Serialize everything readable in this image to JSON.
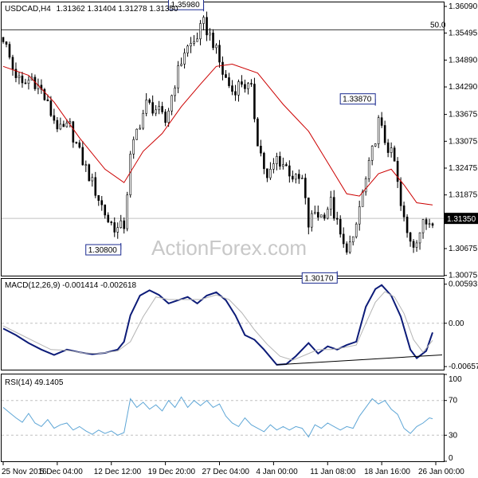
{
  "chart_data": [
    {
      "type": "candlestick",
      "panel": "price",
      "symbol_header": "USDCAD,H4",
      "ohlc_header": "1.31362 1.31404 1.31278 1.31350",
      "watermark": "ActionForex.com",
      "current_price_label": "1.31350",
      "ylim": [
        1.3007,
        1.3618
      ],
      "y_ticks": [
        "1.36090",
        "1.35495",
        "1.34890",
        "1.34290",
        "1.33675",
        "1.33075",
        "1.32475",
        "1.31875",
        "1.30675",
        "1.30075"
      ],
      "y_tick_values": [
        1.3609,
        1.35495,
        1.3489,
        1.3429,
        1.33675,
        1.33075,
        1.32475,
        1.31875,
        1.30675,
        1.30075
      ],
      "level_line": {
        "label": "50.0",
        "value": 1.35565
      },
      "current_price_value": 1.3135,
      "annotations": [
        {
          "text": "1.35980",
          "value": 1.3598,
          "index": 63
        },
        {
          "text": "1.30800",
          "value": 1.308,
          "index": 37
        },
        {
          "text": "1.30170",
          "value": 1.3017,
          "index": 105
        },
        {
          "text": "1.33870",
          "value": 1.3387,
          "index": 117
        }
      ],
      "close_path": [
        [
          0,
          1.354
        ],
        [
          3,
          1.347
        ],
        [
          6,
          1.343
        ],
        [
          9,
          1.345
        ],
        [
          12,
          1.342
        ],
        [
          15,
          1.337
        ],
        [
          18,
          1.333
        ],
        [
          21,
          1.334
        ],
        [
          24,
          1.328
        ],
        [
          27,
          1.323
        ],
        [
          30,
          1.318
        ],
        [
          33,
          1.313
        ],
        [
          36,
          1.311
        ],
        [
          38,
          1.312
        ],
        [
          40,
          1.327
        ],
        [
          42,
          1.333
        ],
        [
          45,
          1.339
        ],
        [
          48,
          1.338
        ],
        [
          51,
          1.335
        ],
        [
          54,
          1.344
        ],
        [
          57,
          1.351
        ],
        [
          60,
          1.353
        ],
        [
          63,
          1.357
        ],
        [
          66,
          1.353
        ],
        [
          69,
          1.346
        ],
        [
          72,
          1.342
        ],
        [
          75,
          1.344
        ],
        [
          78,
          1.342
        ],
        [
          80,
          1.331
        ],
        [
          83,
          1.322
        ],
        [
          86,
          1.327
        ],
        [
          89,
          1.325
        ],
        [
          92,
          1.322
        ],
        [
          94,
          1.322
        ],
        [
          96,
          1.312
        ],
        [
          98,
          1.315
        ],
        [
          100,
          1.314
        ],
        [
          103,
          1.317
        ],
        [
          105,
          1.312
        ],
        [
          107,
          1.307
        ],
        [
          110,
          1.308
        ],
        [
          112,
          1.316
        ],
        [
          115,
          1.325
        ],
        [
          118,
          1.335
        ],
        [
          120,
          1.331
        ],
        [
          123,
          1.326
        ],
        [
          125,
          1.316
        ],
        [
          127,
          1.31
        ],
        [
          129,
          1.308
        ],
        [
          132,
          1.312
        ],
        [
          135,
          1.3135
        ]
      ],
      "ma_line": {
        "name": "",
        "path": [
          [
            0,
            1.3475
          ],
          [
            8,
            1.3455
          ],
          [
            16,
            1.3395
          ],
          [
            24,
            1.3315
          ],
          [
            32,
            1.3245
          ],
          [
            38,
            1.3215
          ],
          [
            44,
            1.3285
          ],
          [
            50,
            1.3325
          ],
          [
            56,
            1.3385
          ],
          [
            62,
            1.3435
          ],
          [
            67,
            1.3475
          ],
          [
            72,
            1.348
          ],
          [
            80,
            1.346
          ],
          [
            88,
            1.339
          ],
          [
            96,
            1.333
          ],
          [
            102,
            1.326
          ],
          [
            108,
            1.319
          ],
          [
            112,
            1.3185
          ],
          [
            118,
            1.3235
          ],
          [
            122,
            1.3245
          ],
          [
            126,
            1.321
          ],
          [
            130,
            1.317
          ],
          [
            135,
            1.3165
          ]
        ]
      }
    },
    {
      "type": "line",
      "panel": "macd",
      "indicator_header": "MACD(12,26,9) -0.001414 -0.002618",
      "ylim": [
        -0.0068,
        0.0065
      ],
      "y_ticks": [
        "0.00593",
        "0.00",
        "-0.006575"
      ],
      "y_tick_values": [
        0.00593,
        0.0,
        -0.006575
      ],
      "series": [
        {
          "name": "",
          "role": "macd",
          "values": [
            [
              0,
              -0.0008
            ],
            [
              4,
              -0.0018
            ],
            [
              8,
              -0.003
            ],
            [
              12,
              -0.004
            ],
            [
              16,
              -0.0048
            ],
            [
              20,
              -0.004
            ],
            [
              24,
              -0.0044
            ],
            [
              28,
              -0.0047
            ],
            [
              32,
              -0.0045
            ],
            [
              36,
              -0.004
            ],
            [
              38,
              -0.0028
            ],
            [
              40,
              0.0012
            ],
            [
              43,
              0.0042
            ],
            [
              46,
              0.005
            ],
            [
              49,
              0.0043
            ],
            [
              52,
              0.003
            ],
            [
              55,
              0.0035
            ],
            [
              58,
              0.004
            ],
            [
              61,
              0.003
            ],
            [
              64,
              0.0042
            ],
            [
              67,
              0.0047
            ],
            [
              70,
              0.0035
            ],
            [
              73,
              0.0012
            ],
            [
              76,
              -0.0018
            ],
            [
              79,
              -0.0025
            ],
            [
              82,
              -0.004
            ],
            [
              86,
              -0.0063
            ],
            [
              89,
              -0.0062
            ],
            [
              92,
              -0.005
            ],
            [
              96,
              -0.003
            ],
            [
              99,
              -0.0046
            ],
            [
              102,
              -0.0035
            ],
            [
              105,
              -0.004
            ],
            [
              108,
              -0.0033
            ],
            [
              111,
              -0.0028
            ],
            [
              114,
              0.0025
            ],
            [
              117,
              0.0052
            ],
            [
              119,
              0.0058
            ],
            [
              122,
              0.0042
            ],
            [
              125,
              0.001
            ],
            [
              128,
              -0.004
            ],
            [
              130,
              -0.0053
            ],
            [
              133,
              -0.0042
            ],
            [
              135,
              -0.0014
            ]
          ]
        },
        {
          "name": "",
          "role": "signal",
          "values": [
            [
              0,
              -0.0004
            ],
            [
              5,
              -0.0016
            ],
            [
              10,
              -0.0028
            ],
            [
              15,
              -0.004
            ],
            [
              20,
              -0.0041
            ],
            [
              25,
              -0.0045
            ],
            [
              30,
              -0.0046
            ],
            [
              36,
              -0.0042
            ],
            [
              40,
              -0.0028
            ],
            [
              44,
              0.001
            ],
            [
              48,
              0.004
            ],
            [
              52,
              0.0036
            ],
            [
              57,
              0.0036
            ],
            [
              62,
              0.0036
            ],
            [
              67,
              0.0043
            ],
            [
              71,
              0.0036
            ],
            [
              75,
              0.0016
            ],
            [
              79,
              -0.001
            ],
            [
              83,
              -0.0032
            ],
            [
              87,
              -0.005
            ],
            [
              91,
              -0.0056
            ],
            [
              95,
              -0.0048
            ],
            [
              99,
              -0.004
            ],
            [
              103,
              -0.004
            ],
            [
              107,
              -0.0037
            ],
            [
              111,
              -0.0033
            ],
            [
              114,
              0.0
            ],
            [
              117,
              0.0032
            ],
            [
              120,
              0.0048
            ],
            [
              123,
              0.004
            ],
            [
              126,
              0.0015
            ],
            [
              129,
              -0.0025
            ],
            [
              132,
              -0.0044
            ],
            [
              135,
              -0.0026
            ]
          ]
        }
      ],
      "trendline": [
        [
          86,
          -0.0063
        ],
        [
          138,
          -0.0048
        ]
      ]
    },
    {
      "type": "line",
      "panel": "rsi",
      "indicator_header": "RSI(14) 49.1405",
      "ylim": [
        0,
        100
      ],
      "y_ticks": [
        "100",
        "70",
        "30",
        "0"
      ],
      "y_tick_values": [
        100,
        70,
        30,
        0
      ],
      "levels": [
        70,
        30
      ],
      "series": [
        {
          "name": "",
          "values": [
            [
              0,
              62
            ],
            [
              2,
              56
            ],
            [
              4,
              50
            ],
            [
              6,
              45
            ],
            [
              8,
              55
            ],
            [
              10,
              44
            ],
            [
              12,
              40
            ],
            [
              14,
              48
            ],
            [
              16,
              38
            ],
            [
              18,
              42
            ],
            [
              20,
              44
            ],
            [
              22,
              36
            ],
            [
              24,
              40
            ],
            [
              26,
              35
            ],
            [
              28,
              31
            ],
            [
              30,
              36
            ],
            [
              32,
              32
            ],
            [
              34,
              35
            ],
            [
              36,
              30
            ],
            [
              38,
              33
            ],
            [
              40,
              72
            ],
            [
              42,
              62
            ],
            [
              44,
              68
            ],
            [
              46,
              60
            ],
            [
              48,
              65
            ],
            [
              50,
              58
            ],
            [
              52,
              70
            ],
            [
              54,
              62
            ],
            [
              56,
              74
            ],
            [
              58,
              62
            ],
            [
              60,
              70
            ],
            [
              62,
              64
            ],
            [
              64,
              70
            ],
            [
              66,
              62
            ],
            [
              68,
              66
            ],
            [
              70,
              52
            ],
            [
              72,
              44
            ],
            [
              74,
              40
            ],
            [
              76,
              50
            ],
            [
              78,
              42
            ],
            [
              80,
              38
            ],
            [
              82,
              34
            ],
            [
              84,
              42
            ],
            [
              86,
              36
            ],
            [
              88,
              40
            ],
            [
              90,
              36
            ],
            [
              92,
              40
            ],
            [
              94,
              38
            ],
            [
              96,
              28
            ],
            [
              98,
              42
            ],
            [
              100,
              38
            ],
            [
              102,
              44
            ],
            [
              104,
              40
            ],
            [
              106,
              36
            ],
            [
              108,
              40
            ],
            [
              110,
              38
            ],
            [
              112,
              52
            ],
            [
              114,
              62
            ],
            [
              116,
              72
            ],
            [
              118,
              66
            ],
            [
              120,
              70
            ],
            [
              122,
              60
            ],
            [
              124,
              54
            ],
            [
              126,
              38
            ],
            [
              128,
              32
            ],
            [
              130,
              40
            ],
            [
              132,
              44
            ],
            [
              134,
              50
            ],
            [
              135,
              49
            ]
          ]
        }
      ]
    }
  ],
  "x_axis": {
    "tick_labels": [
      "25 Nov 2016",
      "5 Dec 04:00",
      "12 Dec 12:00",
      "19 Dec 20:00",
      "27 Dec 04:00",
      "4 Jan 00:00",
      "11 Jan 08:00",
      "18 Jan 16:00",
      "26 Jan 00:00"
    ],
    "tick_index": [
      0,
      17,
      34,
      51,
      68,
      85,
      102,
      119,
      136
    ]
  },
  "colors": {
    "candle": "#000000",
    "ma": "#cc0000",
    "macd": "#0c1b78",
    "signal": "#b4b4b4",
    "rsi": "#5ea6d6",
    "grid": "#c0c0c0",
    "level": "#c0c0c0"
  }
}
